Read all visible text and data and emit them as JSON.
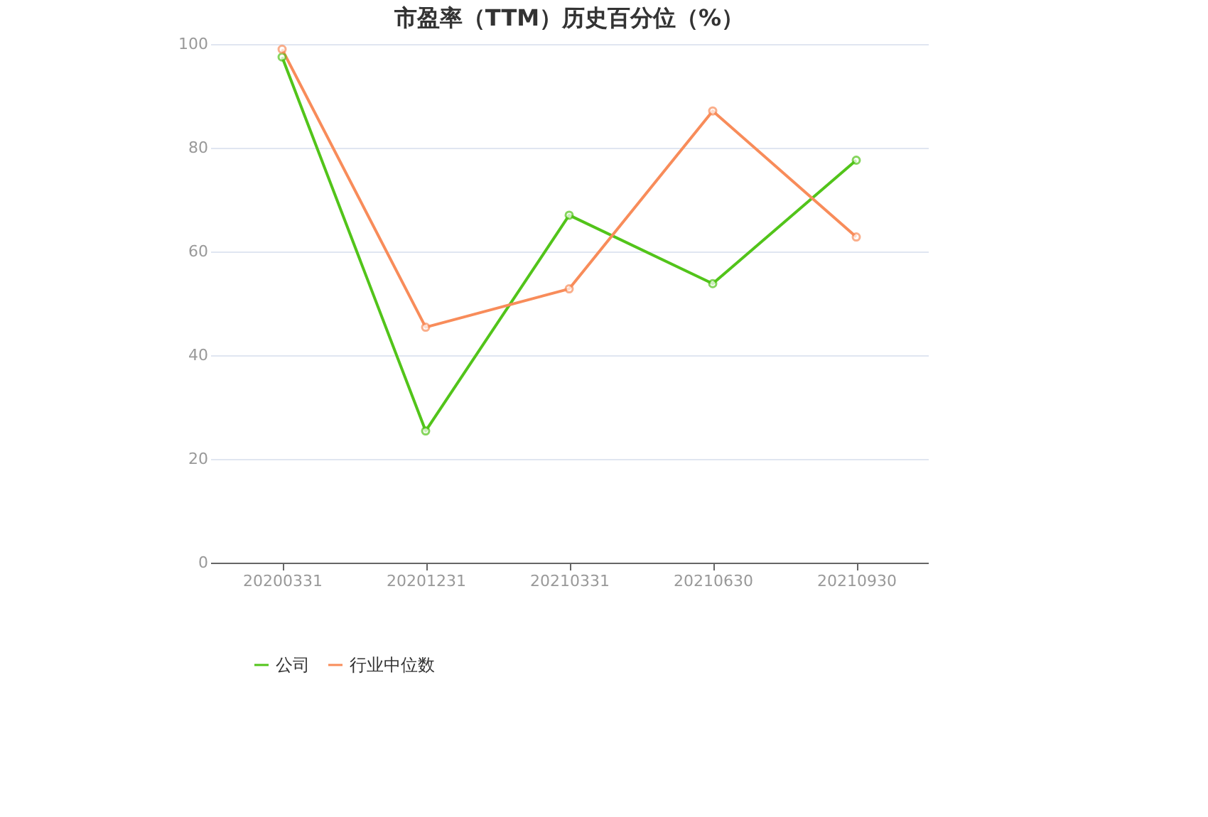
{
  "chart_data": {
    "type": "line",
    "title": "市盈率（TTM）历史百分位（%）",
    "categories": [
      "20200331",
      "20201231",
      "20210331",
      "20210630",
      "20210930"
    ],
    "series": [
      {
        "name": "公司",
        "color": "#52c41a",
        "values": [
          97.5,
          25.4,
          67.0,
          53.8,
          77.6
        ]
      },
      {
        "name": "行业中位数",
        "color": "#f88c5a",
        "values": [
          99.0,
          45.4,
          52.8,
          87.1,
          62.8
        ]
      }
    ],
    "ylim": [
      0,
      100
    ],
    "yticks": [
      0,
      20,
      40,
      60,
      80,
      100
    ],
    "grid": "y",
    "legend": "bottom",
    "marker": "circle",
    "line_style": "solid"
  }
}
